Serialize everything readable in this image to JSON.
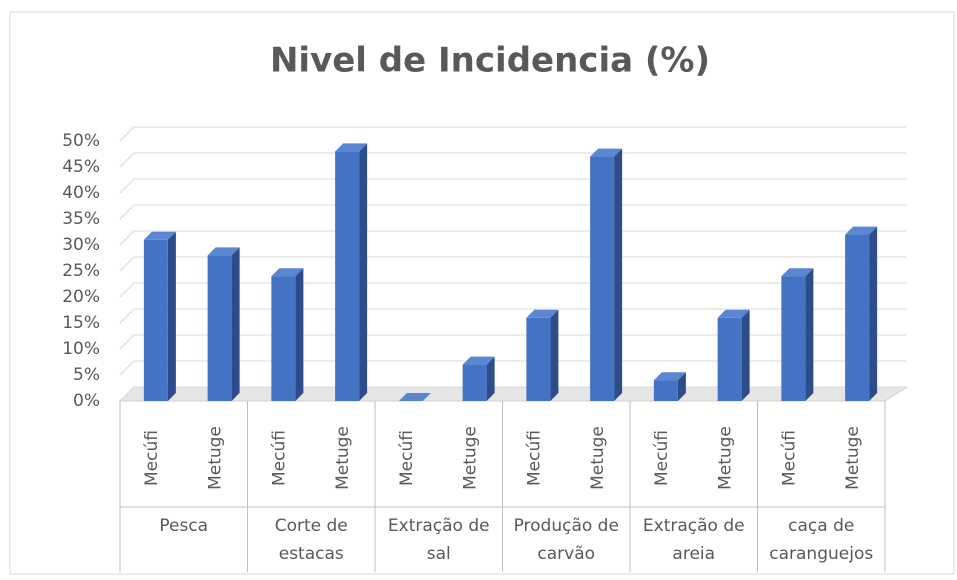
{
  "chart_data": {
    "type": "bar",
    "title": "Nivel de Incidencia (%)",
    "groups": [
      "Pesca",
      "Corte de estacas",
      "Extração de sal",
      "Produção de carvão",
      "Extração de areia",
      "caça de caranguejos"
    ],
    "categories": [
      "Mecúfi",
      "Metuge",
      "Mecúfi",
      "Metuge",
      "Mecúfi",
      "Metuge",
      "Mecúfi",
      "Metuge",
      "Mecúfi",
      "Metuge",
      "Mecúfi",
      "Metuge"
    ],
    "values": [
      31,
      28,
      24,
      48,
      0,
      7,
      16,
      47,
      4,
      16,
      24,
      32
    ],
    "color": "#4472c4",
    "ylim": [
      0,
      50
    ],
    "yticks": [
      {
        "value": 0,
        "label": "0%"
      },
      {
        "value": 5,
        "label": "5%"
      },
      {
        "value": 10,
        "label": "10%"
      },
      {
        "value": 15,
        "label": "15%"
      },
      {
        "value": 20,
        "label": "20%"
      },
      {
        "value": 25,
        "label": "25%"
      },
      {
        "value": 30,
        "label": "30%"
      },
      {
        "value": 35,
        "label": "35%"
      },
      {
        "value": 40,
        "label": "40%"
      },
      {
        "value": 45,
        "label": "45%"
      },
      {
        "value": 50,
        "label": "50%"
      }
    ],
    "grid": true
  }
}
